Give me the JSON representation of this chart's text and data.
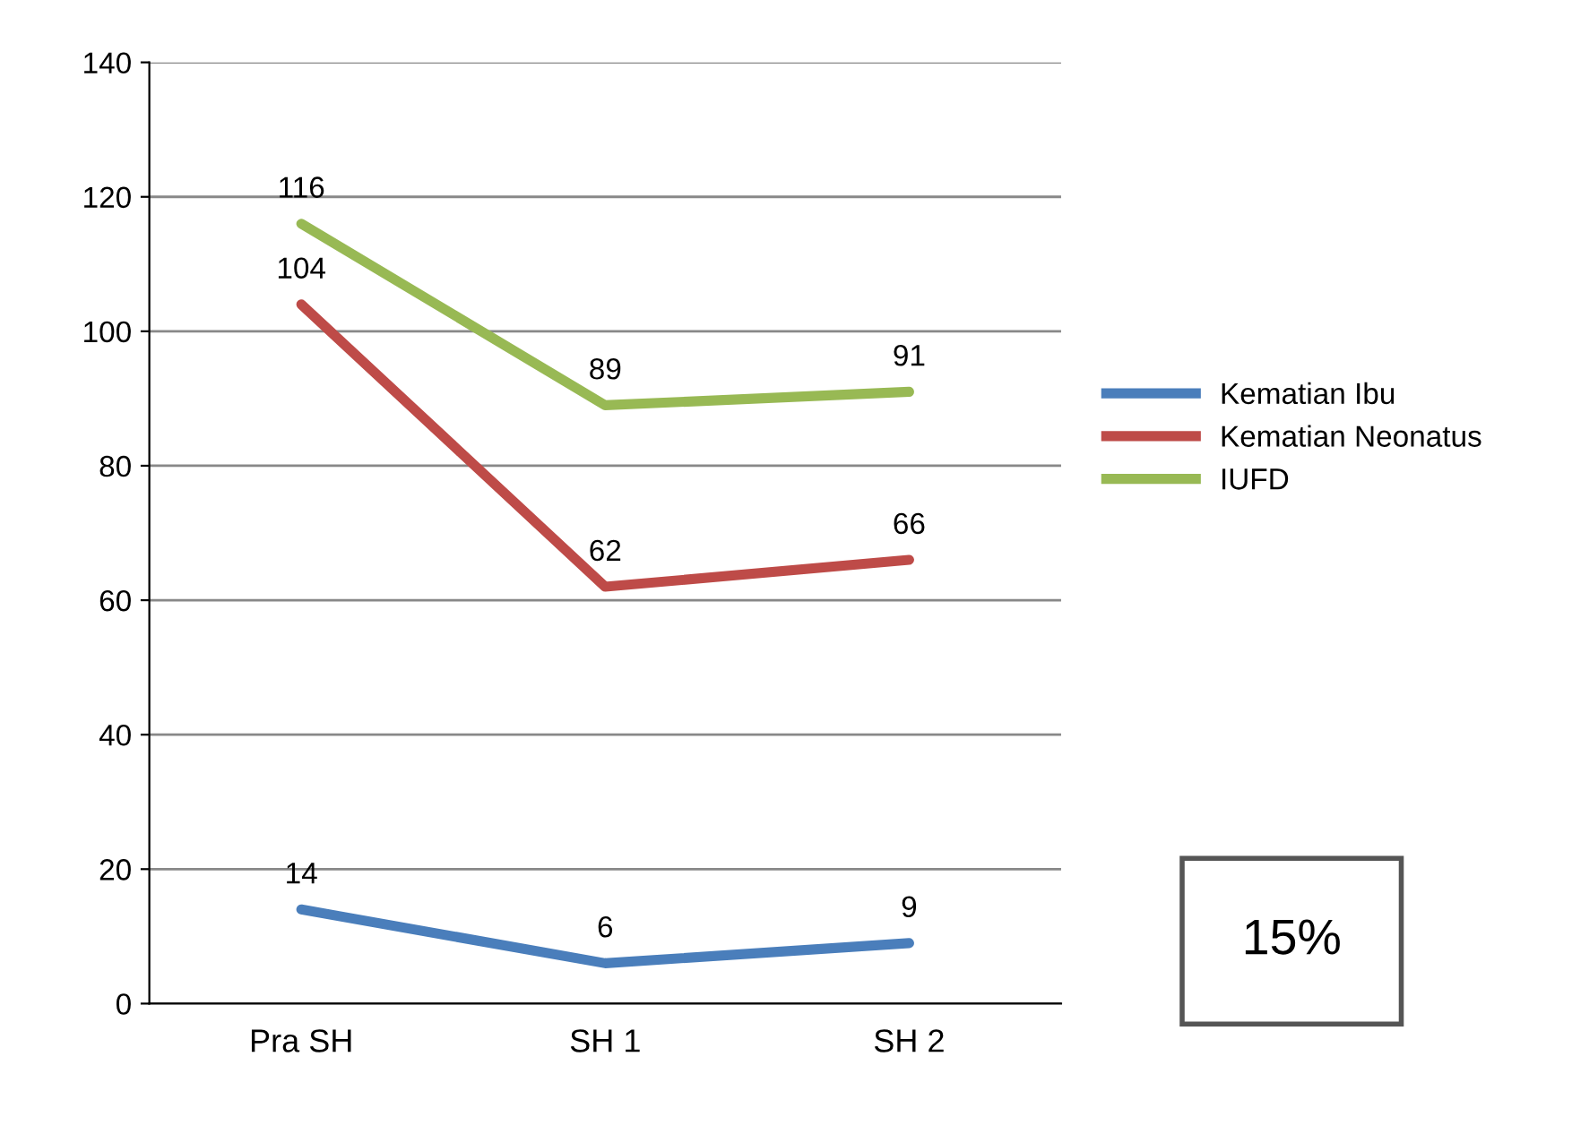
{
  "chart_data": {
    "type": "line",
    "categories": [
      "Pra SH",
      "SH 1",
      "SH 2"
    ],
    "series": [
      {
        "name": "Kematian Ibu",
        "color": "#4a7ebb",
        "values": [
          14,
          6,
          9
        ]
      },
      {
        "name": "Kematian Neonatus",
        "color": "#be4b48",
        "values": [
          104,
          62,
          66
        ]
      },
      {
        "name": "IUFD",
        "color": "#98b954",
        "values": [
          116,
          89,
          91
        ]
      }
    ],
    "ylim": [
      0,
      140
    ],
    "yticks": [
      0,
      20,
      40,
      60,
      80,
      100,
      120,
      140
    ],
    "grid": "y",
    "legend": "right",
    "data_labels": true,
    "marker": "none",
    "line_style": "solid",
    "annotations": [
      "15%"
    ]
  }
}
